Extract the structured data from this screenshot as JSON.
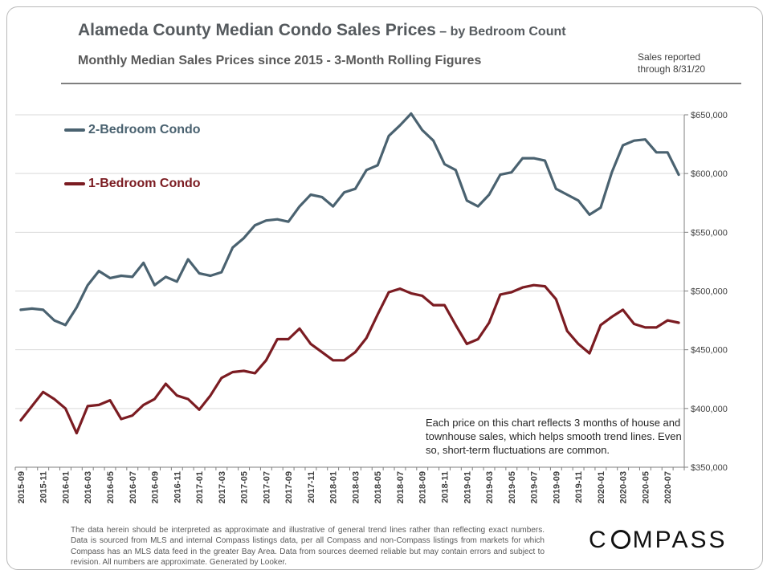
{
  "header": {
    "title": "Alameda County Median Condo Sales Prices",
    "title_suffix": " – by Bedroom Count",
    "subtitle": "Monthly Median Sales Prices since 2015 - 3-Month Rolling Figures",
    "note_line1": "Sales reported",
    "note_line2": "through 8/31/20"
  },
  "callout": "Each price on this chart reflects 3 months of house and townhouse sales, which helps smooth trend lines. Even so, short-term fluctuations are common.",
  "disclaimer": "The data herein should be interpreted as approximate and illustrative of general trend lines rather than reflecting exact numbers. Data is sourced from MLS and internal Compass listings data, per all Compass and non-Compass listings from markets for which Compass has an MLS data feed in the greater Bay Area. Data from sources deemed reliable but may contain errors and subject to revision. All numbers are approximate. Generated by Looker.",
  "logo": {
    "before": "C",
    "after": "MPASS"
  },
  "chart_data": {
    "type": "line",
    "title": "Alameda County Median Condo Sales Prices",
    "x": [
      "2015-09",
      "2015-10",
      "2015-11",
      "2015-12",
      "2016-01",
      "2016-02",
      "2016-03",
      "2016-04",
      "2016-05",
      "2016-06",
      "2016-07",
      "2016-08",
      "2016-09",
      "2016-10",
      "2016-11",
      "2016-12",
      "2017-01",
      "2017-02",
      "2017-03",
      "2017-04",
      "2017-05",
      "2017-06",
      "2017-07",
      "2017-08",
      "2017-09",
      "2017-10",
      "2017-11",
      "2017-12",
      "2018-01",
      "2018-02",
      "2018-03",
      "2018-04",
      "2018-05",
      "2018-06",
      "2018-07",
      "2018-08",
      "2018-09",
      "2018-10",
      "2018-11",
      "2018-12",
      "2019-01",
      "2019-02",
      "2019-03",
      "2019-04",
      "2019-05",
      "2019-06",
      "2019-07",
      "2019-08",
      "2019-09",
      "2019-10",
      "2019-11",
      "2019-12",
      "2020-01",
      "2020-02",
      "2020-03",
      "2020-04",
      "2020-05",
      "2020-06",
      "2020-07",
      "2020-08"
    ],
    "x_tick_labels": [
      "2015-09",
      "2015-11",
      "2016-01",
      "2016-03",
      "2016-05",
      "2016-07",
      "2016-09",
      "2016-11",
      "2017-01",
      "2017-03",
      "2017-05",
      "2017-07",
      "2017-09",
      "2017-11",
      "2018-01",
      "2018-03",
      "2018-05",
      "2018-07",
      "2018-09",
      "2018-11",
      "2019-01",
      "2019-03",
      "2019-05",
      "2019-07",
      "2019-09",
      "2019-11",
      "2020-01",
      "2020-03",
      "2020-05",
      "2020-07"
    ],
    "ylim": [
      350000,
      650000
    ],
    "y_ticks": [
      350000,
      400000,
      450000,
      500000,
      550000,
      600000,
      650000
    ],
    "y_tick_labels": [
      "$350,000",
      "$400,000",
      "$450,000",
      "$500,000",
      "$550,000",
      "$600,000",
      "$650,000"
    ],
    "axis_side": "right",
    "grid": true,
    "legend_placement": "top-left",
    "series": [
      {
        "name": "2-Bedroom Condo",
        "color": "#4a6270",
        "values": [
          484000,
          485000,
          484000,
          475000,
          471000,
          486000,
          505000,
          517000,
          511000,
          513000,
          512000,
          524000,
          505000,
          512000,
          508000,
          527000,
          515000,
          513000,
          516000,
          537000,
          545000,
          556000,
          560000,
          561000,
          559000,
          572000,
          582000,
          580000,
          572000,
          584000,
          587000,
          603000,
          607000,
          632000,
          641000,
          651000,
          637000,
          628000,
          608000,
          603000,
          577000,
          572000,
          582000,
          599000,
          601000,
          613000,
          613000,
          611000,
          587000,
          582000,
          577000,
          565000,
          571000,
          601000,
          624000,
          628000,
          629000,
          618000,
          618000,
          599000
        ]
      },
      {
        "name": "1-Bedroom Condo",
        "color": "#7b1c22",
        "values": [
          390000,
          402000,
          414000,
          408000,
          400000,
          379000,
          402000,
          403000,
          407000,
          391000,
          394000,
          403000,
          408000,
          421000,
          411000,
          408000,
          399000,
          411000,
          426000,
          431000,
          432000,
          430000,
          441000,
          459000,
          459000,
          468000,
          455000,
          448000,
          441000,
          441000,
          448000,
          460000,
          480000,
          499000,
          502000,
          498000,
          496000,
          488000,
          488000,
          471000,
          455000,
          459000,
          473000,
          497000,
          499000,
          503000,
          505000,
          504000,
          493000,
          466000,
          455000,
          447000,
          471000,
          478000,
          484000,
          472000,
          469000,
          469000,
          475000,
          473000
        ]
      }
    ]
  }
}
